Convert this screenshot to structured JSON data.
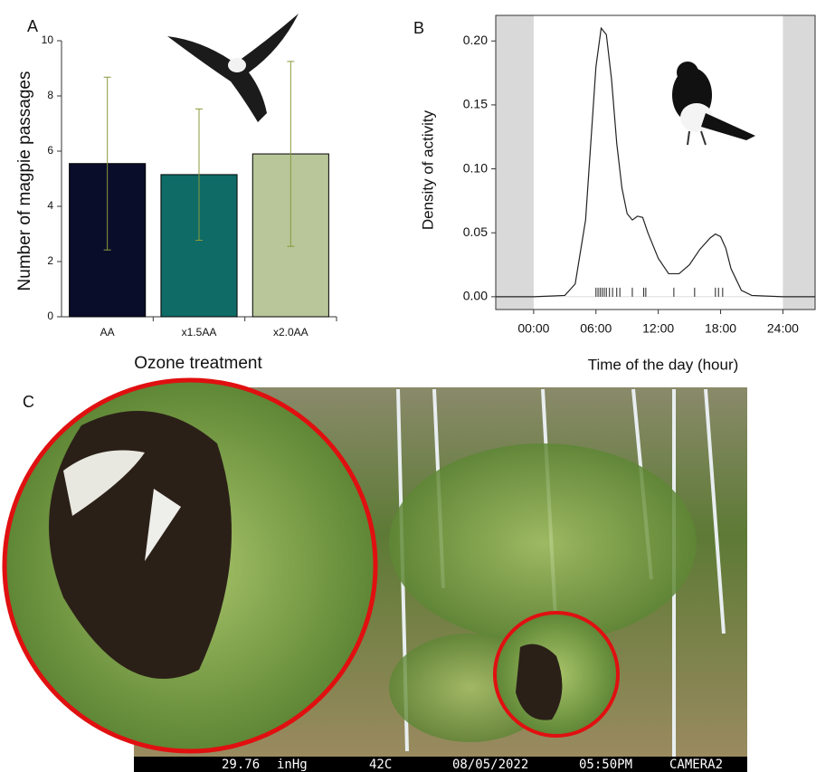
{
  "chart_data": [
    {
      "type": "bar",
      "panel_label": "A",
      "x_label": "Ozone treatment",
      "y_label": "Number of magpie passages",
      "categories": [
        "AA",
        "x1.5AA",
        "x2.0AA"
      ],
      "values": [
        5.55,
        5.15,
        5.9
      ],
      "errors": [
        3.13,
        2.38,
        3.35
      ],
      "colors": [
        "#0a0d2a",
        "#0f6b66",
        "#b8c69a"
      ],
      "error_color": "#8a9a3a",
      "ylim": [
        0,
        10
      ],
      "yticks": [
        0,
        2,
        4,
        6,
        8,
        10
      ]
    },
    {
      "type": "line",
      "panel_label": "B",
      "x_label": "Time of the day (hour)",
      "y_label": "Density of activity",
      "x": [
        -3.65,
        0,
        3,
        4,
        5,
        5.5,
        6,
        6.5,
        7,
        7.5,
        8,
        8.5,
        9,
        9.5,
        10,
        10.5,
        11,
        12,
        13,
        14,
        15,
        16,
        17,
        17.5,
        18,
        18.5,
        19,
        20,
        21,
        24,
        27.1
      ],
      "values": [
        0,
        0,
        0.001,
        0.01,
        0.06,
        0.12,
        0.18,
        0.21,
        0.205,
        0.17,
        0.12,
        0.085,
        0.065,
        0.06,
        0.063,
        0.062,
        0.05,
        0.03,
        0.018,
        0.018,
        0.025,
        0.037,
        0.046,
        0.049,
        0.047,
        0.038,
        0.022,
        0.005,
        0.001,
        0,
        0
      ],
      "color": "#222222",
      "rug": [
        6.0,
        6.2,
        6.4,
        6.6,
        6.8,
        7.0,
        7.3,
        7.6,
        8.0,
        8.3,
        9.5,
        10.6,
        10.8,
        13.5,
        15.5,
        17.5,
        17.8,
        18.2
      ],
      "shaded_ranges": [
        [
          -3.65,
          0
        ],
        [
          24,
          27.1
        ]
      ],
      "shade_color": "#d9d9d9",
      "xlim": [
        -3.65,
        27.1
      ],
      "ylim": [
        -0.01,
        0.22
      ],
      "xticks": [
        {
          "value": 0,
          "label": "00:00"
        },
        {
          "value": 6,
          "label": "06:00"
        },
        {
          "value": 12,
          "label": "12:00"
        },
        {
          "value": 18,
          "label": "18:00"
        },
        {
          "value": 24,
          "label": "24:00"
        }
      ],
      "yticks": [
        {
          "value": 0,
          "label": "0.00"
        },
        {
          "value": 0.05,
          "label": "0.05"
        },
        {
          "value": 0.1,
          "label": "0.10"
        },
        {
          "value": 0.15,
          "label": "0.15"
        },
        {
          "value": 0.2,
          "label": "0.20"
        }
      ]
    }
  ],
  "photo": {
    "panel_label": "C",
    "overlay": [
      "29.76",
      "inHg",
      "42C",
      "08/05/2022",
      "05:50PM",
      "CAMERA2"
    ]
  }
}
